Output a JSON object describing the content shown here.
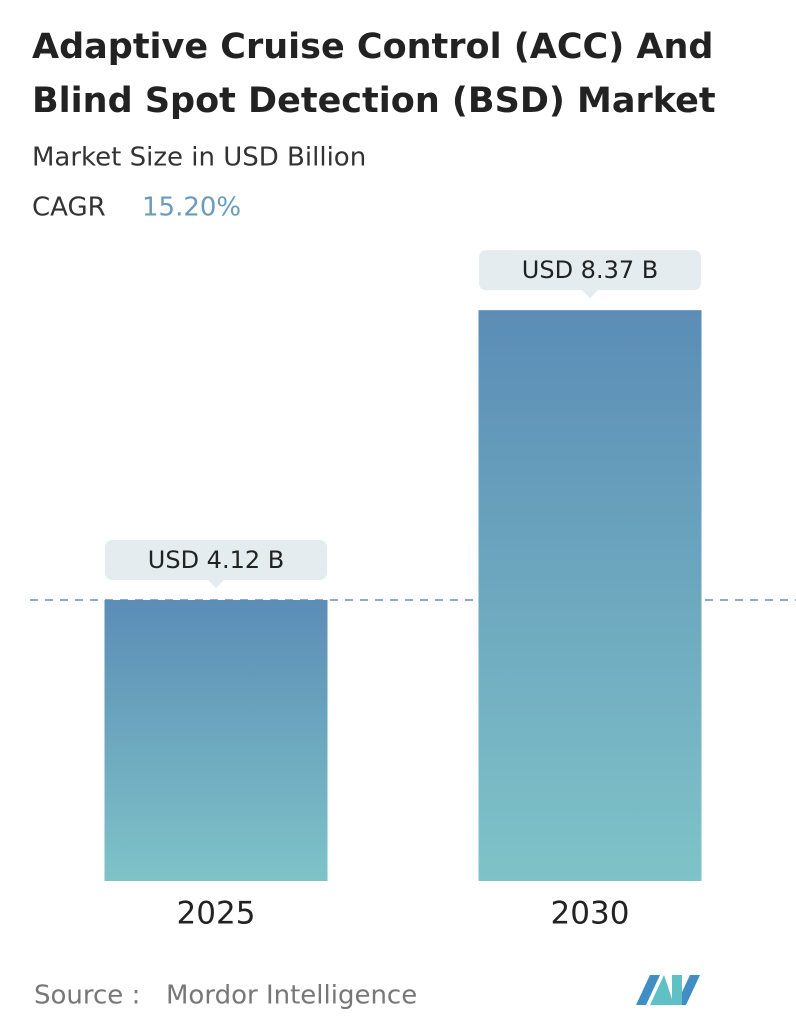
{
  "chart_data": {
    "type": "bar",
    "title": [
      "Adaptive Cruise Control (ACC) And",
      "Blind Spot Detection (BSD) Market"
    ],
    "subtitle": "Market Size in USD Billion",
    "cagr_label": "CAGR",
    "cagr_value": "15.20%",
    "categories": [
      "2025",
      "2030"
    ],
    "values": [
      4.12,
      8.37
    ],
    "value_labels": [
      "USD 4.12 B",
      "USD 8.37 B"
    ],
    "ylim": [
      0,
      10
    ],
    "color": [
      "#5b8db6",
      "#7fc3c8"
    ],
    "source_label": "Source :",
    "source": "Mordor Intelligence"
  }
}
